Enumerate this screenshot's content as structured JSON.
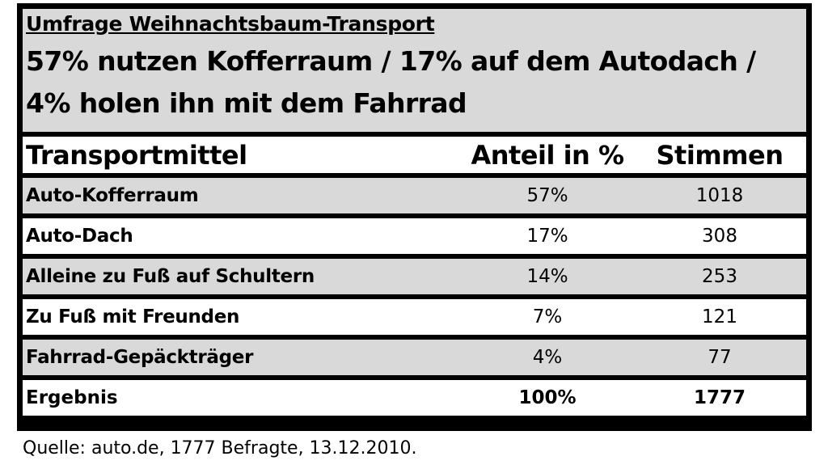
{
  "survey_title": "Umfrage Weihnachtsbaum-Transport",
  "headline": "57% nutzen Kofferraum / 17% auf dem Autodach / 4% holen ihn mit dem Fahrrad",
  "source": "Quelle: auto.de, 1777 Befragte, 13.12.2010.",
  "colors": {
    "border": "#000000",
    "shaded_row": "#d9d9d9",
    "plain_row": "#ffffff"
  },
  "chart_data": {
    "type": "table",
    "columns": [
      "Transportmittel",
      "Anteil in %",
      "Stimmen"
    ],
    "rows": [
      [
        "Auto-Kofferraum",
        "57%",
        "1018"
      ],
      [
        "Auto-Dach",
        "17%",
        "308"
      ],
      [
        "Alleine zu Fuß auf Schultern",
        "14%",
        "253"
      ],
      [
        "Zu Fuß mit Freunden",
        "7%",
        "121"
      ],
      [
        "Fahrrad-Gepäckträger",
        "4%",
        "77"
      ]
    ],
    "total": [
      "Ergebnis",
      "100%",
      "1777"
    ]
  }
}
